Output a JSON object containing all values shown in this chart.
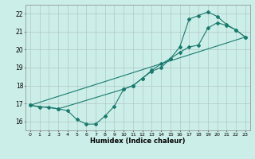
{
  "title": "",
  "xlabel": "Humidex (Indice chaleur)",
  "xlim": [
    -0.5,
    23.5
  ],
  "ylim": [
    15.5,
    22.5
  ],
  "xticks": [
    0,
    1,
    2,
    3,
    4,
    5,
    6,
    7,
    8,
    9,
    10,
    11,
    12,
    13,
    14,
    15,
    16,
    17,
    18,
    19,
    20,
    21,
    22,
    23
  ],
  "yticks": [
    16,
    17,
    18,
    19,
    20,
    21,
    22
  ],
  "background_color": "#cceee8",
  "grid_color": "#b0c8c8",
  "line_color": "#1a7a6e",
  "line1_x": [
    0,
    1,
    2,
    3,
    4,
    5,
    6,
    7,
    8,
    9,
    10,
    11,
    12,
    13,
    14,
    15,
    16,
    17,
    18,
    19,
    20,
    21,
    22,
    23
  ],
  "line1_y": [
    16.9,
    16.8,
    16.8,
    16.7,
    16.6,
    16.1,
    15.85,
    15.85,
    16.3,
    16.85,
    17.8,
    18.0,
    18.4,
    18.8,
    19.0,
    19.5,
    19.85,
    20.15,
    20.25,
    21.2,
    21.5,
    21.35,
    21.1,
    20.7
  ],
  "line2_x": [
    0,
    3,
    10,
    11,
    12,
    13,
    14,
    15,
    16,
    17,
    18,
    19,
    20,
    21,
    22,
    23
  ],
  "line2_y": [
    16.9,
    16.7,
    17.8,
    18.0,
    18.4,
    18.85,
    19.2,
    19.5,
    20.15,
    21.7,
    21.9,
    22.1,
    21.85,
    21.4,
    21.1,
    20.7
  ],
  "line3_x": [
    0,
    23
  ],
  "line3_y": [
    16.9,
    20.7
  ],
  "figsize": [
    3.2,
    2.0
  ],
  "dpi": 100
}
